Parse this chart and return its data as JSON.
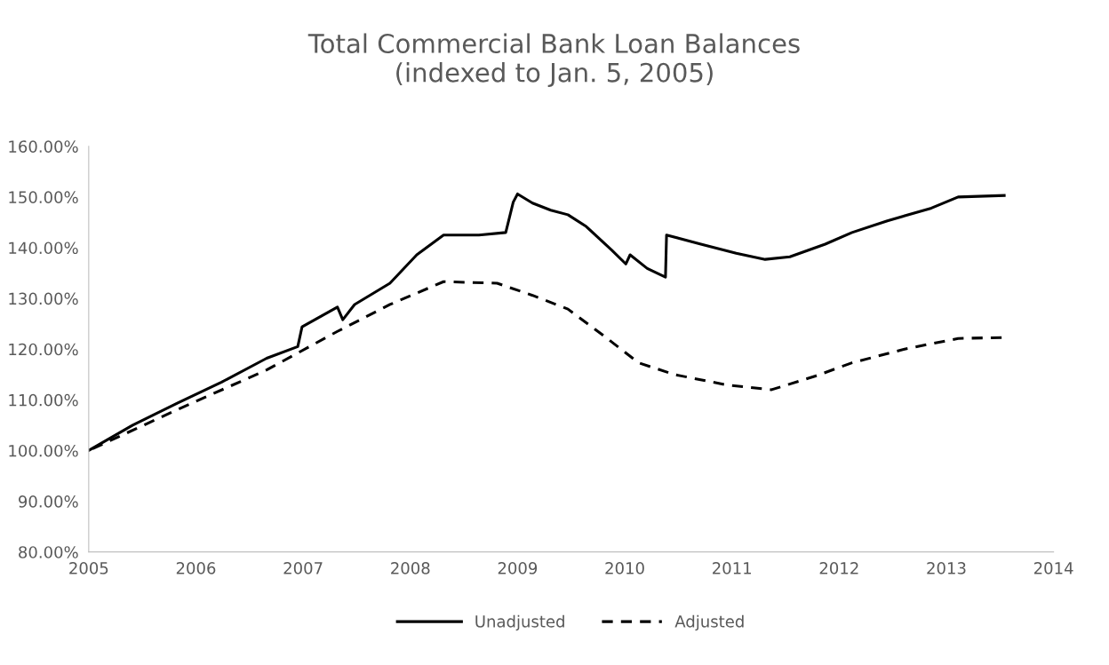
{
  "chart_data": {
    "type": "line",
    "title": "Total Commercial Bank Loan Balances\n(indexed to Jan. 5, 2005)",
    "series": [
      {
        "name": "Unadjusted",
        "color": "#000000",
        "line_style": "solid",
        "x": [
          2005.0,
          2005.41,
          2005.83,
          2006.24,
          2006.66,
          2006.95,
          2006.99,
          2007.32,
          2007.37,
          2007.48,
          2007.81,
          2008.06,
          2008.31,
          2008.64,
          2008.89,
          2008.96,
          2009.0,
          2009.14,
          2009.31,
          2009.47,
          2009.64,
          2009.88,
          2010.01,
          2010.05,
          2010.21,
          2010.38,
          2010.39,
          2010.71,
          2011.04,
          2011.31,
          2011.54,
          2011.87,
          2012.12,
          2012.45,
          2012.86,
          2013.11,
          2013.54
        ],
        "values": [
          100,
          105,
          109.4,
          113.5,
          118.2,
          120.5,
          124.4,
          128.3,
          125.8,
          128.8,
          133,
          138.6,
          142.5,
          142.5,
          143,
          149,
          150.6,
          148.8,
          147.4,
          146.5,
          144.2,
          139.5,
          136.8,
          138.6,
          135.9,
          134.2,
          142.5,
          140.7,
          138.9,
          137.7,
          138.2,
          140.7,
          143,
          145.3,
          147.8,
          150,
          150.3
        ]
      },
      {
        "name": "Adjusted",
        "color": "#000000",
        "line_style": "dashed",
        "x": [
          2005.0,
          2005.83,
          2006.66,
          2007.32,
          2007.81,
          2008.31,
          2008.81,
          2009.14,
          2009.47,
          2009.8,
          2010.13,
          2010.46,
          2010.96,
          2011.37,
          2011.78,
          2012.12,
          2012.61,
          2013.11,
          2013.54
        ],
        "values": [
          100,
          108.1,
          115.9,
          123.5,
          128.8,
          133.3,
          133,
          130.6,
          127.9,
          122.7,
          117.3,
          115,
          112.9,
          112,
          114.7,
          117.3,
          120,
          122.1,
          122.3
        ]
      }
    ],
    "xlim": [
      2005,
      2014
    ],
    "xticks": [
      2005,
      2006,
      2007,
      2008,
      2009,
      2010,
      2011,
      2012,
      2013,
      2014
    ],
    "ylim": [
      80,
      160
    ],
    "yticks": [
      {
        "value": 80,
        "label": "80.00%"
      },
      {
        "value": 90,
        "label": "90.00%"
      },
      {
        "value": 100,
        "label": "100.00%"
      },
      {
        "value": 110,
        "label": "110.00%"
      },
      {
        "value": 120,
        "label": "120.00%"
      },
      {
        "value": 130,
        "label": "130.00%"
      },
      {
        "value": 140,
        "label": "140.00%"
      },
      {
        "value": 150,
        "label": "150.00%"
      },
      {
        "value": 160,
        "label": "160.00%"
      }
    ],
    "grid": false,
    "legend": "bottom",
    "marker": "none"
  }
}
